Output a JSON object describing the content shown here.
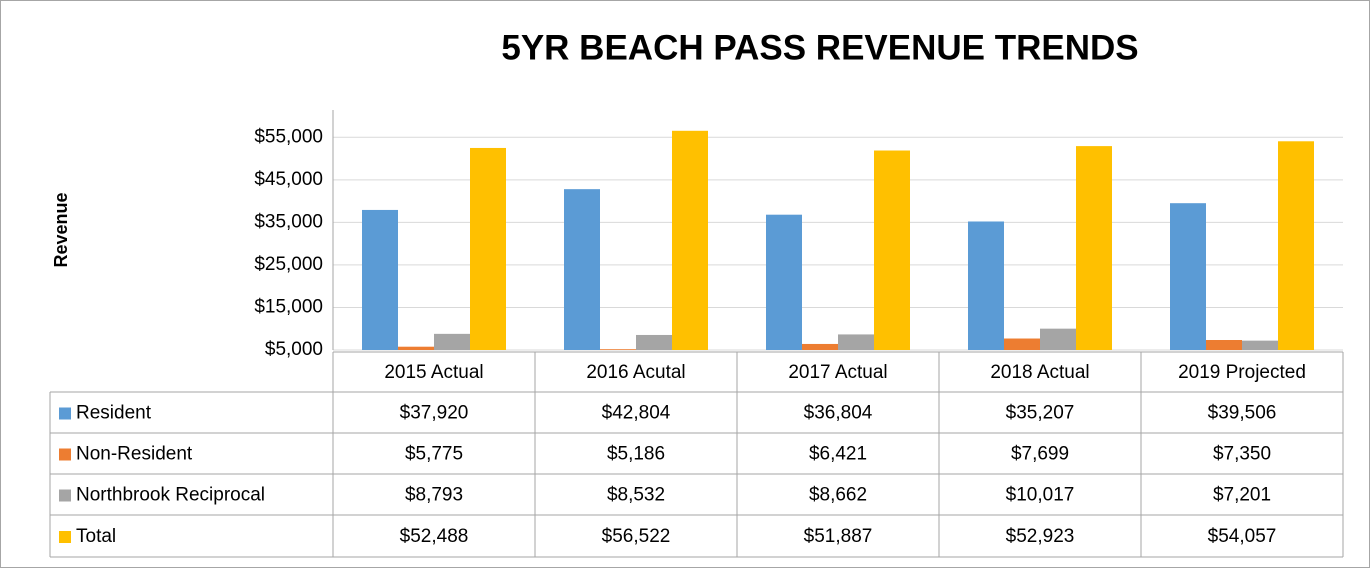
{
  "chart_data": {
    "type": "bar",
    "title": "5YR BEACH PASS REVENUE TRENDS",
    "y_label": "Revenue",
    "categories": [
      "2015 Actual",
      "2016 Acutal",
      "2017 Actual",
      "2018 Actual",
      "2019 Projected"
    ],
    "series": [
      {
        "name": "Resident",
        "color": "#5b9bd5",
        "values": [
          37920,
          42804,
          36804,
          35207,
          39506
        ],
        "value_labels": [
          "$37,920",
          "$42,804",
          "$36,804",
          "$35,207",
          "$39,506"
        ]
      },
      {
        "name": "Non-Resident",
        "color": "#ed7d31",
        "values": [
          5775,
          5186,
          6421,
          7699,
          7350
        ],
        "value_labels": [
          "$5,775",
          "$5,186",
          "$6,421",
          "$7,699",
          "$7,350"
        ]
      },
      {
        "name": "Northbrook Reciprocal",
        "color": "#a5a5a5",
        "values": [
          8793,
          8532,
          8662,
          10017,
          7201
        ],
        "value_labels": [
          "$8,793",
          "$8,532",
          "$8,662",
          "$10,017",
          "$7,201"
        ]
      },
      {
        "name": "Total",
        "color": "#ffc000",
        "values": [
          52488,
          56522,
          51887,
          52923,
          54057
        ],
        "value_labels": [
          "$52,488",
          "$56,522",
          "$51,887",
          "$52,923",
          "$54,057"
        ]
      }
    ],
    "ylim": [
      5000,
      60000
    ],
    "yticks": [
      {
        "value": 5000,
        "label": "$5,000"
      },
      {
        "value": 15000,
        "label": "$15,000"
      },
      {
        "value": 25000,
        "label": "$25,000"
      },
      {
        "value": 35000,
        "label": "$35,000"
      },
      {
        "value": 45000,
        "label": "$45,000"
      },
      {
        "value": 55000,
        "label": "$55,000"
      }
    ],
    "grid": true,
    "legend": "table"
  }
}
